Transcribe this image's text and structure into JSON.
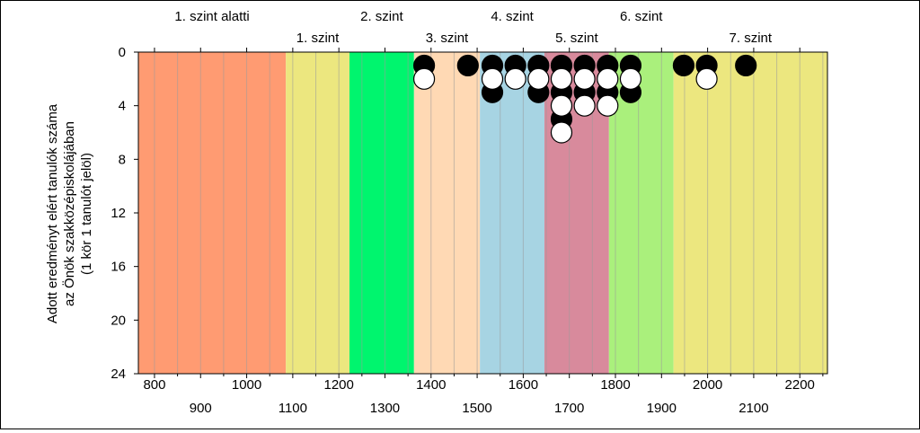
{
  "chart_data": {
    "type": "scatter",
    "ylabel_lines": [
      "Adott eredményt elért tanulók száma",
      "az Önök szakközépiskolájában",
      "(1 kör 1 tanulót jelöl)"
    ],
    "xlim": [
      765,
      2260
    ],
    "ylim": [
      0,
      24
    ],
    "y_inverted": true,
    "y_ticks": [
      "0",
      "4",
      "8",
      "12",
      "16",
      "20",
      "24"
    ],
    "x_ticks_row1": [
      "800",
      "1000",
      "1200",
      "1400",
      "1600",
      "1800",
      "2000",
      "2200"
    ],
    "x_ticks_row2": [
      "900",
      "1100",
      "1300",
      "1500",
      "1700",
      "1900",
      "2100"
    ],
    "grid_step": 50,
    "levels": [
      {
        "name": "1. szint alatti",
        "from": 765,
        "to": 1085,
        "color": "#ff9b72",
        "label_row": "top"
      },
      {
        "name": "1. szint",
        "from": 1085,
        "to": 1223,
        "color": "#ece77f",
        "label_row": "bottom"
      },
      {
        "name": "2. szint",
        "from": 1223,
        "to": 1363,
        "color": "#00f56e",
        "label_row": "top"
      },
      {
        "name": "3. szint",
        "from": 1363,
        "to": 1506,
        "color": "#ffd9b4",
        "label_row": "bottom"
      },
      {
        "name": "4. szint",
        "from": 1506,
        "to": 1646,
        "color": "#a7d4e3",
        "label_row": "top"
      },
      {
        "name": "5. szint",
        "from": 1646,
        "to": 1786,
        "color": "#d88a9c",
        "label_row": "bottom"
      },
      {
        "name": "6. szint",
        "from": 1786,
        "to": 1926,
        "color": "#aaf07c",
        "label_row": "top"
      },
      {
        "name": "7. szint",
        "from": 1926,
        "to": 2260,
        "color": "#ece77f",
        "label_row": "bottom"
      }
    ],
    "series": [
      {
        "marker": "filled",
        "color": "#000000",
        "points": [
          {
            "x": 1385,
            "y": 1
          },
          {
            "x": 1480,
            "y": 1
          },
          {
            "x": 1533,
            "y": 1
          },
          {
            "x": 1533,
            "y": 3
          },
          {
            "x": 1583,
            "y": 1
          },
          {
            "x": 1633,
            "y": 1
          },
          {
            "x": 1633,
            "y": 3
          },
          {
            "x": 1683,
            "y": 1
          },
          {
            "x": 1683,
            "y": 3
          },
          {
            "x": 1683,
            "y": 5
          },
          {
            "x": 1733,
            "y": 1
          },
          {
            "x": 1733,
            "y": 3
          },
          {
            "x": 1783,
            "y": 1
          },
          {
            "x": 1783,
            "y": 3
          },
          {
            "x": 1833,
            "y": 1
          },
          {
            "x": 1833,
            "y": 3
          },
          {
            "x": 1948,
            "y": 1
          },
          {
            "x": 1998,
            "y": 1
          },
          {
            "x": 2083,
            "y": 1
          }
        ]
      },
      {
        "marker": "open",
        "color": "#ffffff",
        "points": [
          {
            "x": 1385,
            "y": 2
          },
          {
            "x": 1533,
            "y": 2
          },
          {
            "x": 1583,
            "y": 2
          },
          {
            "x": 1633,
            "y": 2
          },
          {
            "x": 1683,
            "y": 2
          },
          {
            "x": 1683,
            "y": 4
          },
          {
            "x": 1683,
            "y": 6
          },
          {
            "x": 1733,
            "y": 2
          },
          {
            "x": 1733,
            "y": 4
          },
          {
            "x": 1783,
            "y": 2
          },
          {
            "x": 1783,
            "y": 4
          },
          {
            "x": 1833,
            "y": 2
          },
          {
            "x": 1998,
            "y": 2
          }
        ]
      }
    ]
  }
}
